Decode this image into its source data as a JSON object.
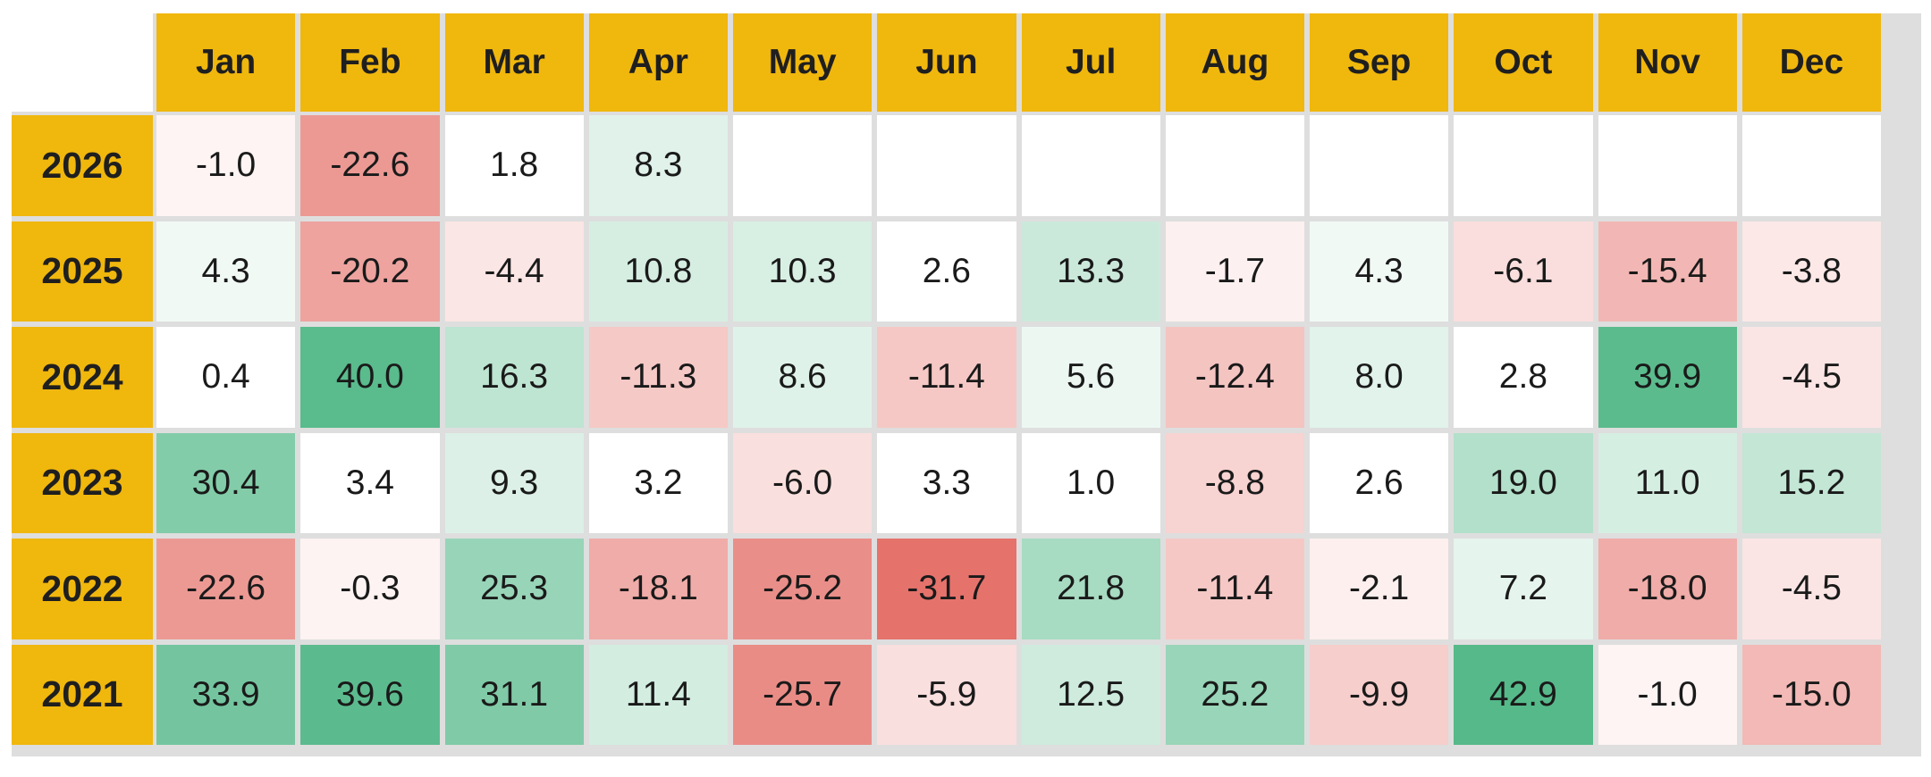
{
  "chart_data": {
    "type": "heatmap",
    "title": "",
    "xlabel": "",
    "ylabel": "",
    "months": [
      "Jan",
      "Feb",
      "Mar",
      "Apr",
      "May",
      "Jun",
      "Jul",
      "Aug",
      "Sep",
      "Oct",
      "Nov",
      "Dec"
    ],
    "years": [
      "2026",
      "2025",
      "2024",
      "2023",
      "2022",
      "2021"
    ],
    "values": [
      [
        -1.0,
        -22.6,
        1.8,
        8.3,
        null,
        null,
        null,
        null,
        null,
        null,
        null,
        null
      ],
      [
        4.3,
        -20.2,
        -4.4,
        10.8,
        10.3,
        2.6,
        13.3,
        -1.7,
        4.3,
        -6.1,
        -15.4,
        -3.8
      ],
      [
        0.4,
        40.0,
        16.3,
        -11.3,
        8.6,
        -11.4,
        5.6,
        -12.4,
        8.0,
        2.8,
        39.9,
        -4.5
      ],
      [
        30.4,
        3.4,
        9.3,
        3.2,
        -6.0,
        3.3,
        1.0,
        -8.8,
        2.6,
        19.0,
        11.0,
        15.2
      ],
      [
        -22.6,
        -0.3,
        25.3,
        -18.1,
        -25.2,
        -31.7,
        21.8,
        -11.4,
        -2.1,
        7.2,
        -18.0,
        -4.5
      ],
      [
        33.9,
        39.6,
        31.1,
        11.4,
        -25.7,
        -5.9,
        12.5,
        25.2,
        -9.9,
        42.9,
        -1.0,
        -15.0
      ]
    ]
  },
  "colors": {
    "header_bg": "#f0b70d",
    "corner_bg": "#ffffff",
    "grid": "#dedede",
    "positive": "#56b98a",
    "negative": "#e5736c",
    "empty": "#ffffff",
    "text": "#1a1a1a"
  }
}
